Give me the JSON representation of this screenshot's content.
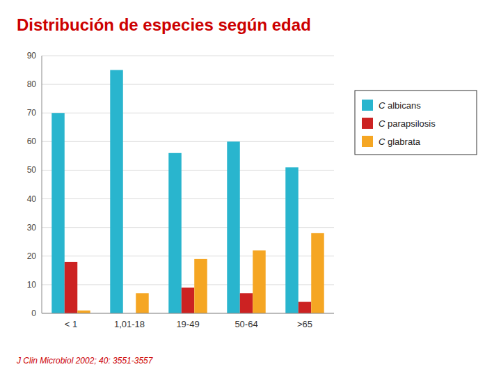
{
  "chart_data": {
    "type": "bar",
    "title": "Distribución de especies según edad",
    "subtitle": "J Clin Microbiol 2002; 40: 3551-3557",
    "categories": [
      "< 1",
      "1,01-18",
      "19-49",
      "50-64",
      ">65"
    ],
    "series": [
      {
        "name": "C albicans",
        "color": "#29b5ce",
        "values": [
          70,
          85,
          56,
          60,
          51
        ]
      },
      {
        "name": "C parapsilosis",
        "color": "#cc2222",
        "values": [
          18,
          0,
          9,
          7,
          4
        ]
      },
      {
        "name": "C glabrata",
        "color": "#f5a623",
        "values": [
          1,
          7,
          19,
          22,
          28
        ]
      }
    ],
    "ylim": [
      0,
      90
    ],
    "yticks": [
      0,
      10,
      20,
      30,
      40,
      50,
      60,
      70,
      80,
      90
    ],
    "grid": true,
    "legend": "right"
  }
}
